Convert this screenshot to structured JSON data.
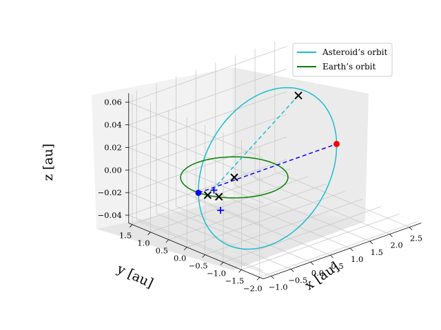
{
  "chart_data": {
    "type": "line3d",
    "title": "",
    "xlabel": "x [au]",
    "ylabel": "y [au]",
    "zlabel": "z [au]",
    "x_ticks": [
      "−1.0",
      "−0.5",
      "0.0",
      "0.5",
      "1.0",
      "1.5",
      "2.0",
      "2.5"
    ],
    "y_ticks": [
      "1.5",
      "1.0",
      "0.5",
      "0.0",
      "−0.5",
      "−1.0",
      "−1.5",
      "−2.0"
    ],
    "z_ticks": [
      "0.06",
      "0.04",
      "0.02",
      "0.00",
      "−0.02",
      "−0.04"
    ],
    "xlim": [
      -1.2,
      2.8
    ],
    "ylim": [
      -2.1,
      1.6
    ],
    "zlim": [
      -0.047,
      0.068
    ],
    "legend": {
      "position": "top-right",
      "entries": [
        {
          "label": "Asteroid’s orbit",
          "color": "#17becf"
        },
        {
          "label": "Earth’s orbit",
          "color": "#008000"
        }
      ]
    },
    "series": [
      {
        "name": "Asteroid’s orbit",
        "kind": "ellipse",
        "color": "#17becf",
        "center": [
          0.75,
          -0.1,
          0.0
        ],
        "semi_axis_a": 1.75,
        "inclination_deg": 6
      },
      {
        "name": "Earth’s orbit",
        "kind": "circle",
        "color": "#008000",
        "center": [
          0,
          0,
          0
        ],
        "radius": 1.0
      }
    ],
    "markers": [
      {
        "name": "sun",
        "symbol": "x",
        "color": "#000000",
        "x": 0.0,
        "y": 0.0,
        "z": 0.0
      },
      {
        "name": "perihelion",
        "symbol": "dot",
        "color": "#0000ff",
        "x": -1.0,
        "y": -0.1,
        "z": 0.0
      },
      {
        "name": "aphelion",
        "symbol": "dot",
        "color": "#ff0000",
        "x": 2.5,
        "y": -0.1,
        "z": 0.0
      },
      {
        "name": "asteroid-position",
        "symbol": "x",
        "color": "#000000",
        "x": 1.9,
        "y": 0.3,
        "z": 0.045
      },
      {
        "name": "earth-position-1",
        "symbol": "x",
        "color": "#000000",
        "x": -0.95,
        "y": -0.3,
        "z": 0.0
      },
      {
        "name": "earth-position-2",
        "symbol": "x",
        "color": "#000000",
        "x": -0.85,
        "y": -0.5,
        "z": 0.0
      },
      {
        "name": "plus-1",
        "symbol": "+",
        "color": "#0000ff",
        "x": -0.7,
        "y": -0.2,
        "z": 0.0
      },
      {
        "name": "plus-2",
        "symbol": "+",
        "color": "#0000ff",
        "x": -0.9,
        "y": -0.6,
        "z": -0.01
      }
    ],
    "lines": [
      {
        "name": "apsides-line",
        "style": "dashed",
        "color": "#0000ff",
        "from": "perihelion",
        "to": "aphelion"
      },
      {
        "name": "asteroid-to-earth",
        "style": "dashed",
        "color": "#17becf",
        "from": "asteroid-position",
        "to": "earth-position-1"
      }
    ]
  }
}
